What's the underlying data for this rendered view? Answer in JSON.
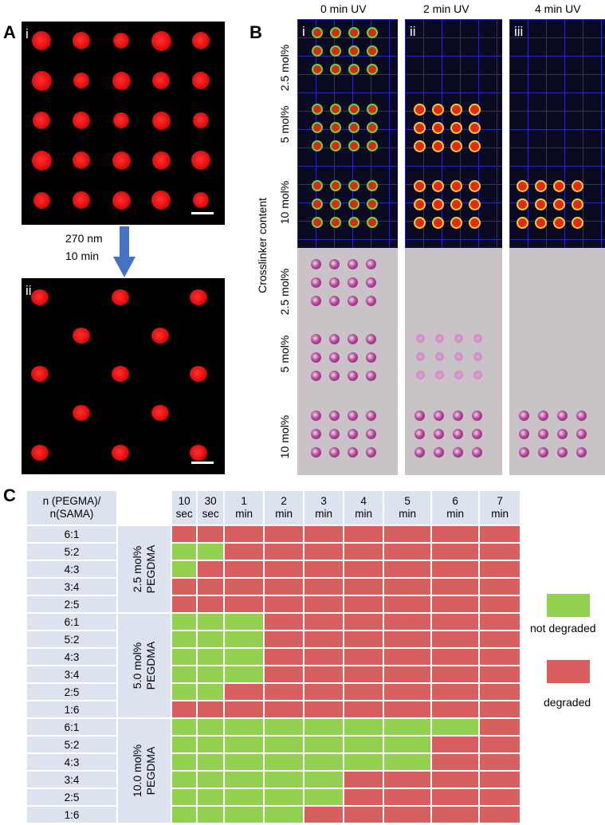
{
  "panel_a": {
    "letter": "A",
    "top_label": "i",
    "bottom_label": "ii",
    "arrow_line1": "270 nm",
    "arrow_line2": "10 min"
  },
  "panel_b": {
    "letter": "B",
    "columns": [
      {
        "title": "0 min UV",
        "roman": "i"
      },
      {
        "title": "2 min UV",
        "roman": "ii"
      },
      {
        "title": "4 min UV",
        "roman": "iii"
      }
    ],
    "row_labels": [
      "2.5 mol%",
      "5 mol%",
      "10 mol%"
    ],
    "axis_label": "Crosslinker content"
  },
  "panel_c": {
    "letter": "C",
    "ratio_header_line1": "n (PEGMA)/",
    "ratio_header_line2": "n(SAMA)",
    "time_headers": [
      [
        "10",
        "sec"
      ],
      [
        "30",
        "sec"
      ],
      [
        "1",
        "min"
      ],
      [
        "2",
        "min"
      ],
      [
        "3",
        "min"
      ],
      [
        "4",
        "min"
      ],
      [
        "5",
        "min"
      ],
      [
        "6",
        "min"
      ],
      [
        "7",
        "min"
      ]
    ],
    "groups": [
      {
        "label_line1": "2.5 mol%",
        "label_line2": "PEGDMA",
        "rows": [
          {
            "ratio": "6:1",
            "pattern": "rrrrrrrrr"
          },
          {
            "ratio": "5:2",
            "pattern": "ggrrrrrrr"
          },
          {
            "ratio": "4:3",
            "pattern": "grrrrrrrr"
          },
          {
            "ratio": "3:4",
            "pattern": "rrrrrrrrr"
          },
          {
            "ratio": "2:5",
            "pattern": "rrrrrrrrr"
          }
        ]
      },
      {
        "label_line1": "5.0 mol%",
        "label_line2": "PEGDMA",
        "rows": [
          {
            "ratio": "6:1",
            "pattern": "gggrrrrrr"
          },
          {
            "ratio": "5:2",
            "pattern": "gggrrrrrr"
          },
          {
            "ratio": "4:3",
            "pattern": "gggrrrrrr"
          },
          {
            "ratio": "3:4",
            "pattern": "gggrrrrrr"
          },
          {
            "ratio": "2:5",
            "pattern": "ggrrrrrrr"
          },
          {
            "ratio": "1:6",
            "pattern": "rrrrrrrrr"
          }
        ]
      },
      {
        "label_line1": "10.0 mol%",
        "label_line2": "PEGDMA",
        "rows": [
          {
            "ratio": "6:1",
            "pattern": "ggggggggr"
          },
          {
            "ratio": "5:2",
            "pattern": "gggggggrr"
          },
          {
            "ratio": "4:3",
            "pattern": "gggggggrr"
          },
          {
            "ratio": "3:4",
            "pattern": "gggggrrrr"
          },
          {
            "ratio": "2:5",
            "pattern": "gggggrrrr"
          },
          {
            "ratio": "1:6",
            "pattern": "ggggrrrrr"
          }
        ]
      }
    ],
    "legend": {
      "not_degraded": "not degraded",
      "degraded": "degraded",
      "green": "#92d050",
      "red": "#d75f5f"
    }
  }
}
